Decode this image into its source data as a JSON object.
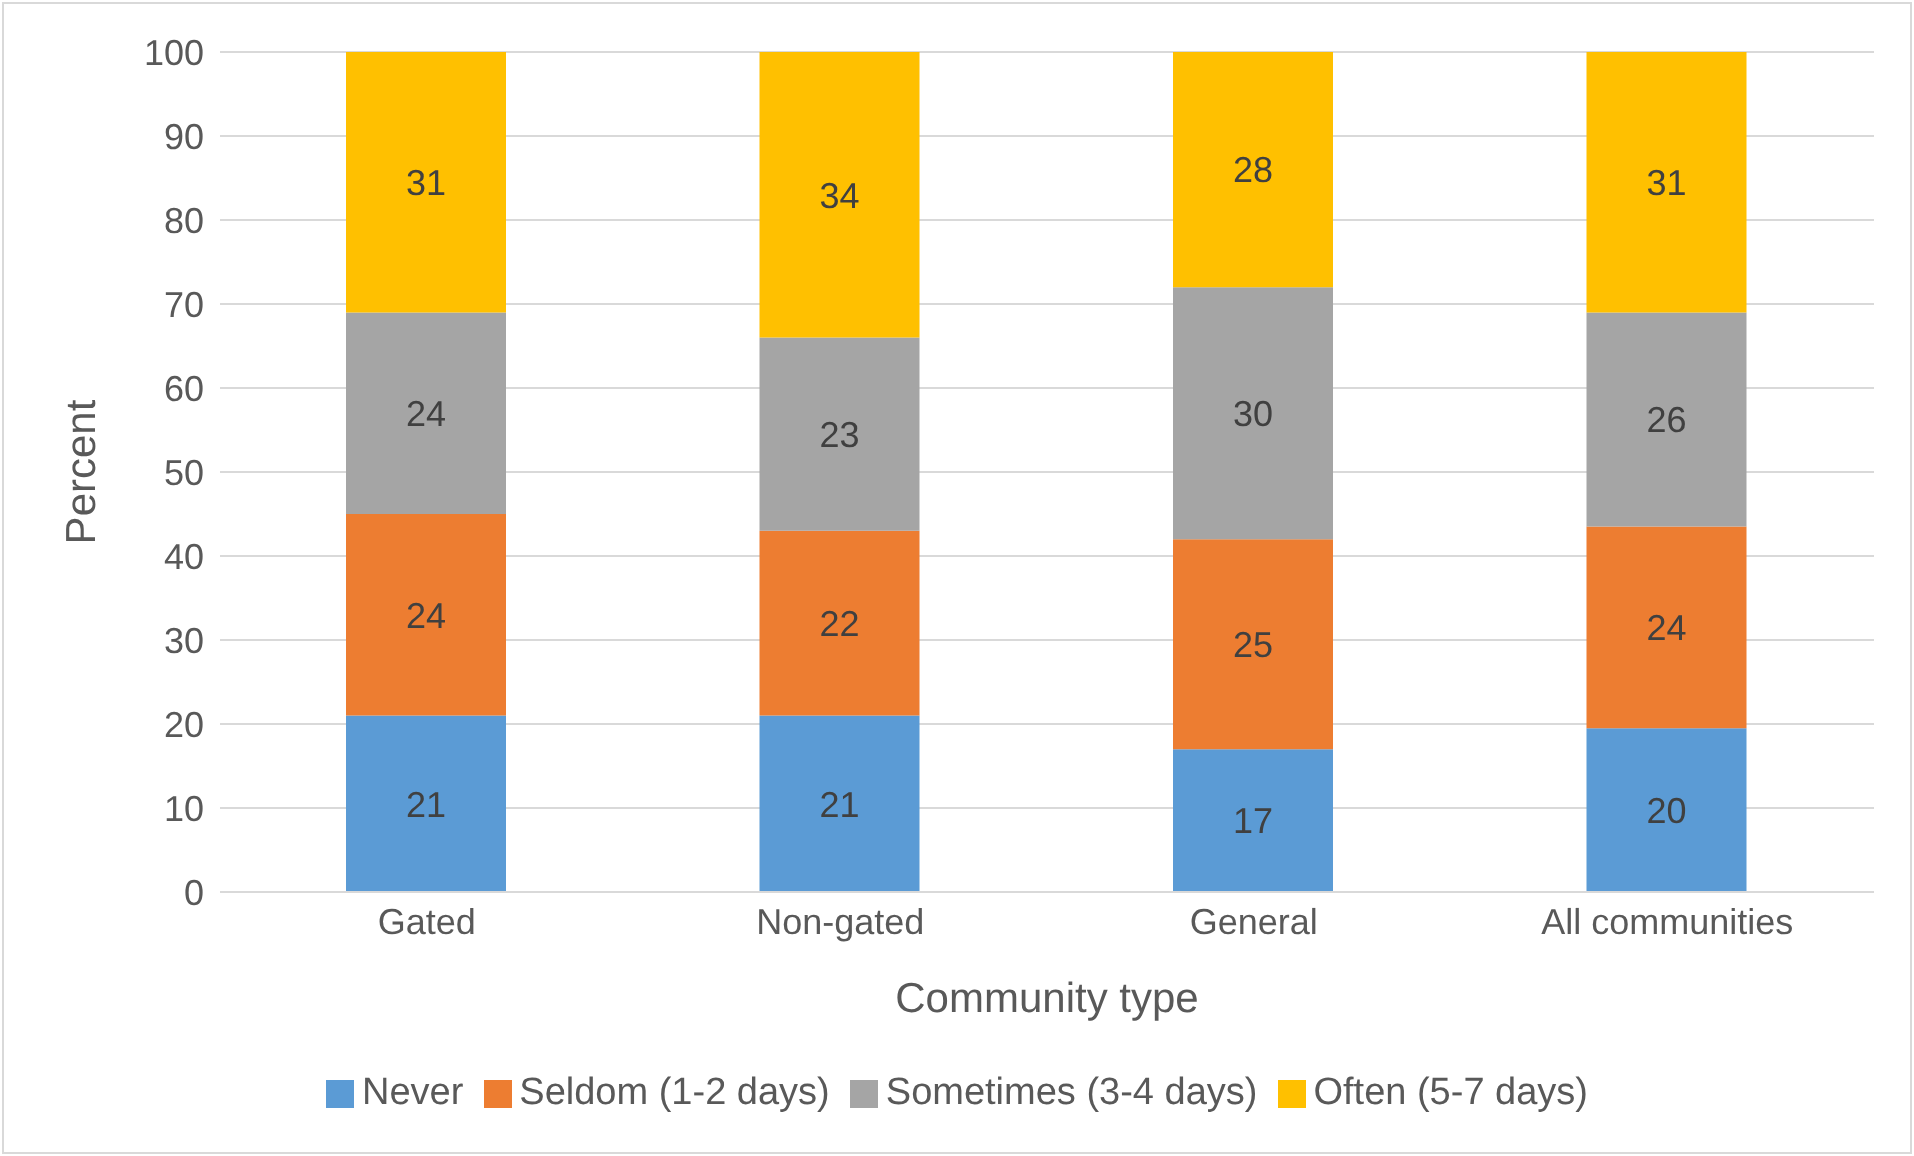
{
  "chart_data": {
    "type": "bar",
    "stacked": true,
    "xlabel": "Community type",
    "ylabel": "Percent",
    "categories": [
      "Gated",
      "Non-gated",
      "General",
      "All communities"
    ],
    "series": [
      {
        "name": "Never",
        "color": "#5b9bd5",
        "values": [
          21,
          21,
          17,
          19.5
        ],
        "value_labels": [
          "21",
          "21",
          "17",
          "20"
        ]
      },
      {
        "name": "Seldom (1-2 days)",
        "color": "#ed7d31",
        "values": [
          24,
          22,
          25,
          24
        ],
        "value_labels": [
          "24",
          "22",
          "25",
          "24"
        ]
      },
      {
        "name": "Sometimes (3-4 days)",
        "color": "#a5a5a5",
        "values": [
          24,
          23,
          30,
          25.5
        ],
        "value_labels": [
          "24",
          "23",
          "30",
          "26"
        ]
      },
      {
        "name": "Often (5-7 days)",
        "color": "#ffc000",
        "values": [
          31,
          34,
          28,
          31
        ],
        "value_labels": [
          "31",
          "34",
          "28",
          "31"
        ]
      }
    ],
    "ylim": [
      0,
      100
    ],
    "yticks": [
      0,
      10,
      20,
      30,
      40,
      50,
      60,
      70,
      80,
      90,
      100
    ],
    "grid": "y",
    "legend": "bottom"
  }
}
